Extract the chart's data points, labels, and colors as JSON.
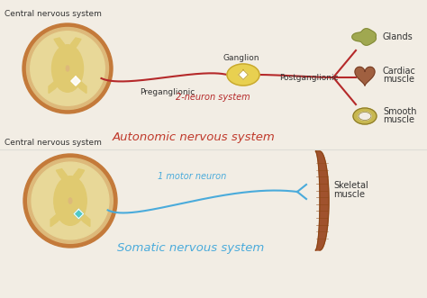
{
  "bg_color": "#f2ede4",
  "top_label": "Central nervous system",
  "bottom_label": "Central nervous system",
  "somatic_title": "Somatic nervous system",
  "autonomic_title": "Autonomic nervous system",
  "somatic_neuron_label": "1 motor neuron",
  "somatic_muscle_label_1": "Skeletal",
  "somatic_muscle_label_2": "muscle",
  "autonomic_neuron_label": "2-neuron system",
  "preganglionic_label": "Preganglionic",
  "ganglion_label": "Ganglion",
  "postganglionic_label": "Postganglionic",
  "smooth_label_1": "Smooth",
  "smooth_label_2": "muscle",
  "cardiac_label_1": "Cardiac",
  "cardiac_label_2": "muscle",
  "glands_label": "Glands",
  "somatic_color": "#4aabdb",
  "autonomic_color": "#b5292a",
  "title_somatic_color": "#4aabdb",
  "title_autonomic_color": "#c0392b",
  "spinal_outer_color": "#c47a3a",
  "spinal_mid_color": "#ddb97a",
  "spinal_inner_color": "#e8d898",
  "spinal_gray_color": "#e0ca70",
  "ganglion_fill": "#e8d050",
  "ganglion_border": "#c8a830",
  "muscle_dark": "#8b4513",
  "muscle_mid": "#a0522d",
  "muscle_light": "#cd853f",
  "smooth_fill": "#c8b850",
  "smooth_border": "#8a7828",
  "cardiac_fill": "#a06040",
  "gland_fill": "#a0a850"
}
